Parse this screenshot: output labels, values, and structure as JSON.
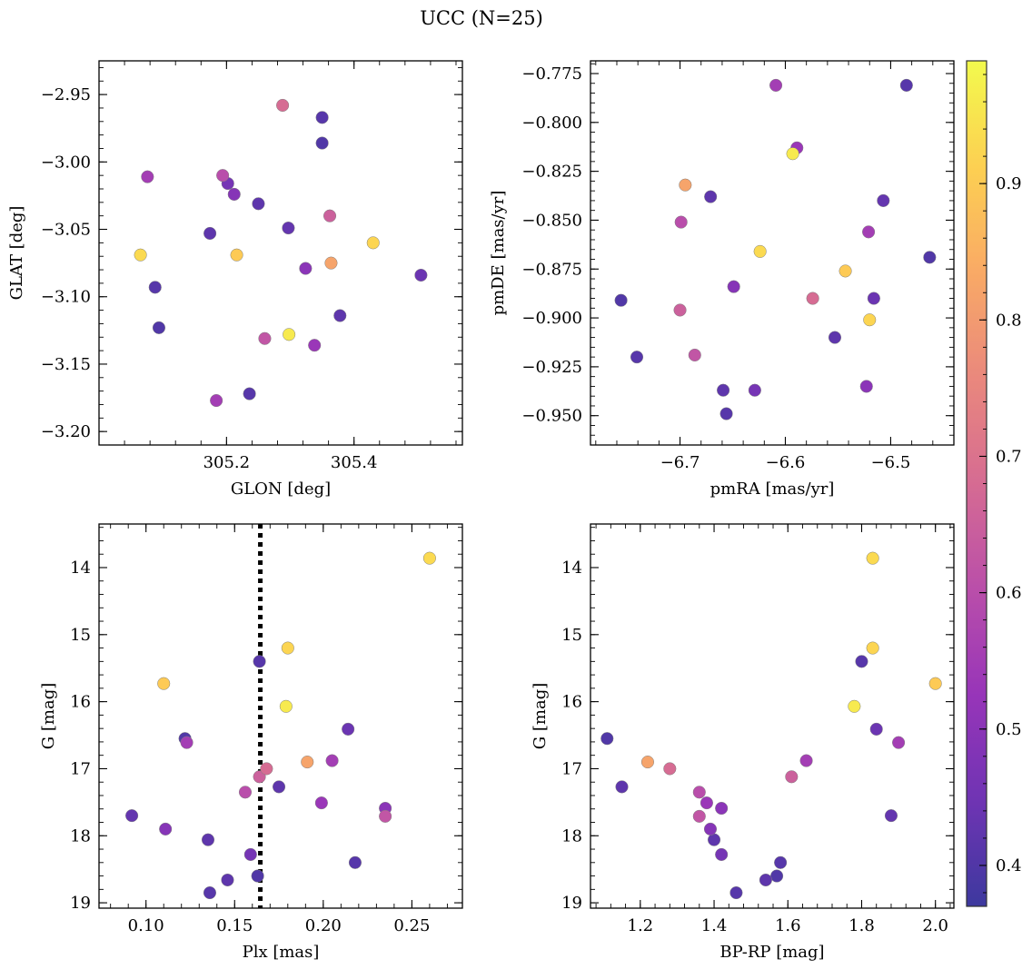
{
  "chart_data": {
    "title": "UCC (N=25)",
    "type": "scatter",
    "colorbar": {
      "colormap": "plasma",
      "range": [
        0.37,
        0.99
      ],
      "ticks": [
        "0.4",
        "0.5",
        "0.6",
        "0.7",
        "0.8",
        "0.9"
      ],
      "tick_values": [
        0.4,
        0.5,
        0.6,
        0.7,
        0.8,
        0.9
      ]
    },
    "stars": [
      {
        "glon": 305.35,
        "glat": -2.967,
        "pmra": -6.485,
        "pmde": -0.781,
        "plx": 0.164,
        "g": 15.4,
        "bprp": 1.8,
        "c": 0.41
      },
      {
        "glon": 305.35,
        "glat": -2.986,
        "pmra": -6.463,
        "pmde": -0.869,
        "plx": 0.122,
        "g": 16.55,
        "bprp": 1.11,
        "c": 0.4
      },
      {
        "glon": 305.25,
        "glat": -3.031,
        "pmra": -6.553,
        "pmde": -0.91,
        "plx": 0.175,
        "g": 17.27,
        "bprp": 1.15,
        "c": 0.42
      },
      {
        "glon": 305.297,
        "glat": -3.049,
        "pmra": -6.507,
        "pmde": -0.84,
        "plx": 0.092,
        "g": 17.7,
        "bprp": 1.88,
        "c": 0.43
      },
      {
        "glon": 305.174,
        "glat": -3.053,
        "pmra": -6.671,
        "pmde": -0.838,
        "plx": 0.135,
        "g": 18.06,
        "bprp": 1.4,
        "c": 0.42
      },
      {
        "glon": 305.088,
        "glat": -3.093,
        "pmra": -6.741,
        "pmde": -0.92,
        "plx": 0.136,
        "g": 18.85,
        "bprp": 1.46,
        "c": 0.41
      },
      {
        "glon": 305.094,
        "glat": -3.123,
        "pmra": -6.756,
        "pmde": -0.891,
        "plx": 0.163,
        "g": 18.6,
        "bprp": 1.57,
        "c": 0.4
      },
      {
        "glon": 305.378,
        "glat": -3.114,
        "pmra": -6.659,
        "pmde": -0.937,
        "plx": 0.146,
        "g": 18.66,
        "bprp": 1.54,
        "c": 0.42
      },
      {
        "glon": 305.236,
        "glat": -3.172,
        "pmra": -6.656,
        "pmde": -0.949,
        "plx": 0.218,
        "g": 18.4,
        "bprp": 1.58,
        "c": 0.41
      },
      {
        "glon": 305.505,
        "glat": -3.084,
        "pmra": -6.516,
        "pmde": -0.89,
        "plx": 0.214,
        "g": 16.41,
        "bprp": 1.84,
        "c": 0.44
      },
      {
        "glon": 305.202,
        "glat": -3.016,
        "pmra": -6.629,
        "pmde": -0.937,
        "plx": 0.159,
        "g": 18.28,
        "bprp": 1.42,
        "c": 0.46
      },
      {
        "glon": 305.212,
        "glat": -3.024,
        "pmra": -6.649,
        "pmde": -0.884,
        "plx": 0.111,
        "g": 17.9,
        "bprp": 1.39,
        "c": 0.49
      },
      {
        "glon": 305.324,
        "glat": -3.079,
        "pmra": -6.523,
        "pmde": -0.935,
        "plx": 0.235,
        "g": 17.59,
        "bprp": 1.42,
        "c": 0.5
      },
      {
        "glon": 305.338,
        "glat": -3.136,
        "pmra": -6.589,
        "pmde": -0.813,
        "plx": 0.199,
        "g": 17.51,
        "bprp": 1.38,
        "c": 0.53
      },
      {
        "glon": 305.184,
        "glat": -3.177,
        "pmra": -6.609,
        "pmde": -0.781,
        "plx": 0.205,
        "g": 16.88,
        "bprp": 1.65,
        "c": 0.55
      },
      {
        "glon": 305.076,
        "glat": -3.011,
        "pmra": -6.521,
        "pmde": -0.856,
        "plx": 0.123,
        "g": 16.61,
        "bprp": 1.9,
        "c": 0.55
      },
      {
        "glon": 305.194,
        "glat": -3.01,
        "pmra": -6.699,
        "pmde": -0.851,
        "plx": 0.156,
        "g": 17.35,
        "bprp": 1.36,
        "c": 0.6
      },
      {
        "glon": 305.26,
        "glat": -3.131,
        "pmra": -6.686,
        "pmde": -0.919,
        "plx": 0.235,
        "g": 17.71,
        "bprp": 1.36,
        "c": 0.62
      },
      {
        "glon": 305.362,
        "glat": -3.04,
        "pmra": -6.7,
        "pmde": -0.896,
        "plx": 0.164,
        "g": 17.12,
        "bprp": 1.61,
        "c": 0.65
      },
      {
        "glon": 305.288,
        "glat": -2.958,
        "pmra": -6.574,
        "pmde": -0.89,
        "plx": 0.168,
        "g": 17.0,
        "bprp": 1.28,
        "c": 0.68
      },
      {
        "glon": 305.364,
        "glat": -3.075,
        "pmra": -6.695,
        "pmde": -0.832,
        "plx": 0.191,
        "g": 16.9,
        "bprp": 1.22,
        "c": 0.82
      },
      {
        "glon": 305.216,
        "glat": -3.069,
        "pmra": -6.543,
        "pmde": -0.876,
        "plx": 0.11,
        "g": 15.73,
        "bprp": 2.0,
        "c": 0.9
      },
      {
        "glon": 305.43,
        "glat": -3.06,
        "pmra": -6.52,
        "pmde": -0.901,
        "plx": 0.18,
        "g": 15.2,
        "bprp": 1.83,
        "c": 0.92
      },
      {
        "glon": 305.065,
        "glat": -3.069,
        "pmra": -6.624,
        "pmde": -0.866,
        "plx": 0.26,
        "g": 13.86,
        "bprp": 1.83,
        "c": 0.93
      },
      {
        "glon": 305.298,
        "glat": -3.128,
        "pmra": -6.593,
        "pmde": -0.816,
        "plx": 0.179,
        "g": 16.07,
        "bprp": 1.78,
        "c": 0.96
      }
    ],
    "panels": [
      {
        "id": "glon-glat",
        "x_key": "glon",
        "y_key": "glat",
        "xlabel": "GLON [deg]",
        "ylabel": "GLAT [deg]",
        "xlim": [
          305.0,
          305.57
        ],
        "ylim": [
          -3.21,
          -2.925
        ],
        "y_inverted": false,
        "xticks": [
          305.2,
          305.4
        ],
        "xtick_labels": [
          "305.2",
          "305.4"
        ],
        "yticks": [
          -2.95,
          -3.0,
          -3.05,
          -3.1,
          -3.15,
          -3.2
        ],
        "ytick_labels": [
          "−2.95",
          "−3.00",
          "−3.05",
          "−3.10",
          "−3.15",
          "−3.20"
        ],
        "xminor": 0.04,
        "yminor": 0.01
      },
      {
        "id": "pm",
        "x_key": "pmra",
        "y_key": "pmde",
        "xlabel": "pmRA [mas/yr]",
        "ylabel": "pmDE [mas/yr]",
        "xlim": [
          -6.785,
          -6.44
        ],
        "ylim": [
          -0.965,
          -0.7685
        ],
        "y_inverted": false,
        "xticks": [
          -6.7,
          -6.6,
          -6.5
        ],
        "xtick_labels": [
          "−6.7",
          "−6.6",
          "−6.5"
        ],
        "yticks": [
          -0.775,
          -0.8,
          -0.825,
          -0.85,
          -0.875,
          -0.9,
          -0.925,
          -0.95
        ],
        "ytick_labels": [
          "−0.775",
          "−0.800",
          "−0.825",
          "−0.850",
          "−0.875",
          "−0.900",
          "−0.925",
          "−0.950"
        ],
        "xminor": 0.02,
        "yminor": 0.005
      },
      {
        "id": "plx-g",
        "x_key": "plx",
        "y_key": "g",
        "xlabel": "Plx [mas]",
        "ylabel": "G [mag]",
        "xlim": [
          0.0735,
          0.2785
        ],
        "ylim": [
          19.08,
          13.35
        ],
        "y_inverted": true,
        "xticks": [
          0.1,
          0.15,
          0.2,
          0.25
        ],
        "xtick_labels": [
          "0.10",
          "0.15",
          "0.20",
          "0.25"
        ],
        "yticks": [
          14,
          15,
          16,
          17,
          18,
          19
        ],
        "ytick_labels": [
          "14",
          "15",
          "16",
          "17",
          "18",
          "19"
        ],
        "xminor": 0.01,
        "yminor": 0.2,
        "vline": {
          "x": 0.1645,
          "style": "dotted"
        }
      },
      {
        "id": "bprp-g",
        "x_key": "bprp",
        "y_key": "g",
        "xlabel": "BP-RP [mag]",
        "ylabel": "G [mag]",
        "xlim": [
          1.065,
          2.05
        ],
        "ylim": [
          19.08,
          13.35
        ],
        "y_inverted": true,
        "xticks": [
          1.2,
          1.4,
          1.6,
          1.8,
          2.0
        ],
        "xtick_labels": [
          "1.2",
          "1.4",
          "1.6",
          "1.8",
          "2.0"
        ],
        "yticks": [
          14,
          15,
          16,
          17,
          18,
          19
        ],
        "ytick_labels": [
          "14",
          "15",
          "16",
          "17",
          "18",
          "19"
        ],
        "xminor": 0.04,
        "yminor": 0.2
      }
    ]
  }
}
